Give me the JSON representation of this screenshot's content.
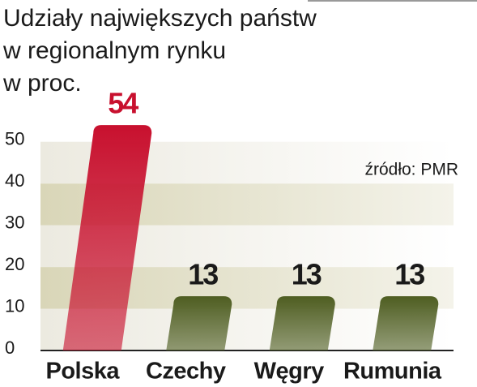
{
  "chart_data": {
    "type": "bar",
    "title": [
      "Udziały największych państw",
      "w regionalnym rynku",
      "w proc."
    ],
    "source": "źródło: PMR",
    "categories": [
      "Polska",
      "Czechy",
      "Węgry",
      "Rumunia"
    ],
    "values": [
      54,
      13,
      13,
      13
    ],
    "colors": [
      "#c8102e",
      "#4f5e22",
      "#4f5e22",
      "#4f5e22"
    ],
    "ylim": [
      0,
      55
    ],
    "yticks": [
      0,
      10,
      20,
      30,
      40,
      50
    ],
    "grid": true
  }
}
